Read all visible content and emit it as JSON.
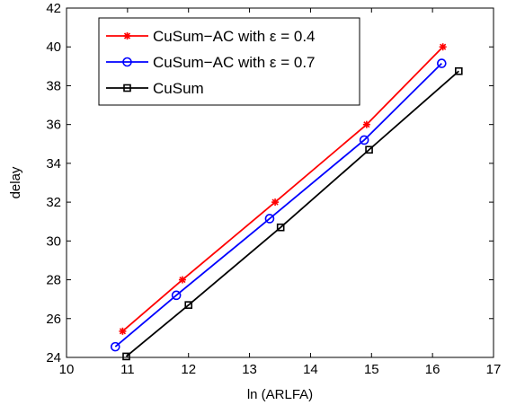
{
  "chart_data": {
    "type": "line",
    "title": "",
    "xlabel": "ln (ARLFA)",
    "ylabel": "delay",
    "xlim": [
      10,
      17
    ],
    "ylim": [
      24,
      42
    ],
    "x_ticks": [
      10,
      11,
      12,
      13,
      14,
      15,
      16,
      17
    ],
    "y_ticks": [
      24,
      26,
      28,
      30,
      32,
      34,
      36,
      38,
      40,
      42
    ],
    "grid": false,
    "legend_position": "top-left",
    "series": [
      {
        "name": "CuSum−AC with ε = 0.4",
        "color": "#ff0000",
        "marker": "asterisk",
        "x": [
          10.92,
          11.9,
          13.42,
          14.92,
          16.17
        ],
        "y": [
          25.35,
          28.0,
          32.0,
          36.0,
          40.0
        ]
      },
      {
        "name": "CuSum−AC with ε = 0.7",
        "color": "#0000ff",
        "marker": "circle",
        "x": [
          10.8,
          11.8,
          13.33,
          14.88,
          16.15
        ],
        "y": [
          24.55,
          27.2,
          31.15,
          35.2,
          39.15
        ]
      },
      {
        "name": "CuSum",
        "color": "#000000",
        "marker": "square",
        "x": [
          10.98,
          12.0,
          13.51,
          14.96,
          16.43
        ],
        "y": [
          24.05,
          26.7,
          30.7,
          34.7,
          38.75
        ]
      }
    ]
  }
}
